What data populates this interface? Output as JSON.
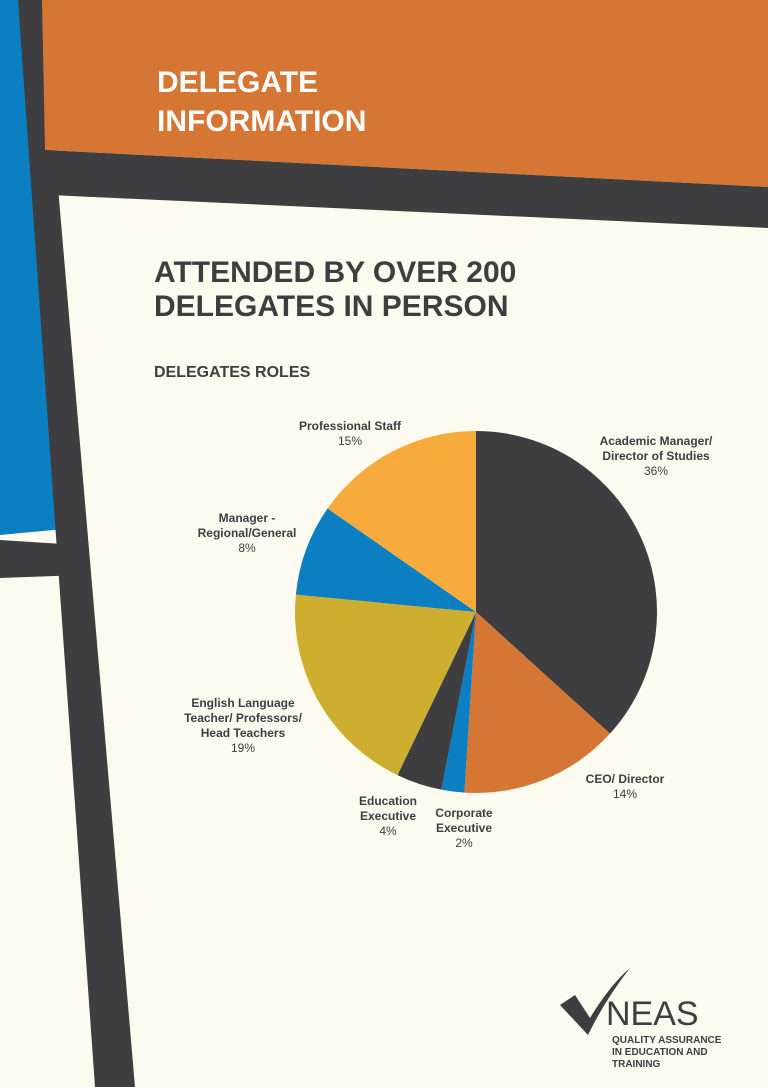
{
  "header": {
    "title_lines": [
      "DELEGATE",
      "INFORMATION"
    ]
  },
  "headline": {
    "lines": [
      "ATTENDED BY OVER 200",
      "DELEGATES IN PERSON"
    ]
  },
  "chart_data": {
    "type": "pie",
    "title": "DELEGATES ROLES",
    "categories": [
      "Academic Manager/ Director of Studies",
      "CEO/ Director",
      "Corporate Executive",
      "Education Executive",
      "English Language Teacher/ Professors/ Head Teachers",
      "Manager - Regional/General",
      "Professional Staff"
    ],
    "values": [
      36,
      14,
      2,
      4,
      19,
      8,
      15
    ],
    "value_labels": [
      "36%",
      "14%",
      "2%",
      "4%",
      "19%",
      "8%",
      "15%"
    ],
    "colors": [
      "#3e3d40",
      "#d67634",
      "#0b7fc1",
      "#3e3d40",
      "#cdae2f",
      "#0b7fc1",
      "#f6ab3c"
    ]
  },
  "logo": {
    "name": "NEAS",
    "tagline_lines": [
      "QUALITY ASSURANCE",
      "IN EDUCATION AND",
      "TRAINING"
    ]
  }
}
